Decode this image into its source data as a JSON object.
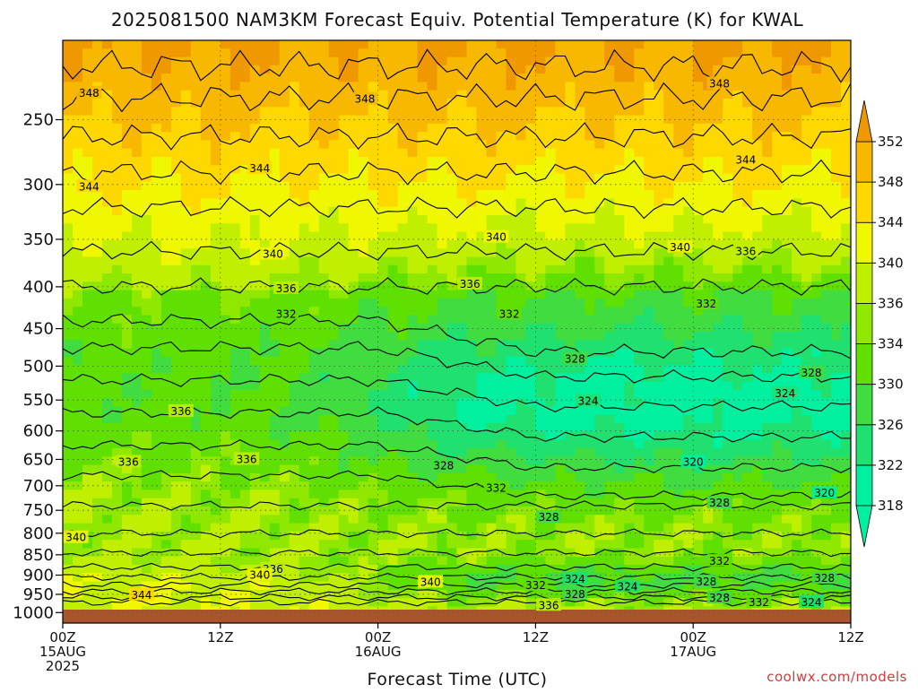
{
  "chart_data": {
    "type": "heatmap",
    "title": "2025081500 NAM3KM Forecast Equiv. Potential Temperature (K) for KWAL",
    "xlabel": "Forecast Time (UTC)",
    "ylabel": "",
    "x_ticks": [
      {
        "hour": 0,
        "lines": [
          "00Z",
          "15AUG",
          "2025"
        ]
      },
      {
        "hour": 12,
        "lines": [
          "12Z"
        ]
      },
      {
        "hour": 24,
        "lines": [
          "00Z",
          "16AUG"
        ]
      },
      {
        "hour": 36,
        "lines": [
          "12Z"
        ]
      },
      {
        "hour": 48,
        "lines": [
          "00Z",
          "17AUG"
        ]
      },
      {
        "hour": 60,
        "lines": [
          "12Z"
        ]
      }
    ],
    "xlim": [
      0,
      60
    ],
    "y_scale": "log-pressure",
    "ylim": [
      1030,
      200
    ],
    "y_ticks": [
      250,
      300,
      350,
      400,
      450,
      500,
      550,
      600,
      650,
      700,
      750,
      800,
      850,
      900,
      950,
      1000
    ],
    "colorbar": {
      "levels": [
        318,
        322,
        326,
        330,
        334,
        336,
        340,
        344,
        348,
        352
      ],
      "colors": [
        "#00f0a0",
        "#20e070",
        "#40dc40",
        "#60e000",
        "#90e800",
        "#c0f000",
        "#f0f800",
        "#ffd800",
        "#f8b800",
        "#f09800"
      ]
    },
    "contour_labels": [
      {
        "hour": 2,
        "p": 232,
        "text": "348"
      },
      {
        "hour": 23,
        "p": 236,
        "text": "348"
      },
      {
        "hour": 50,
        "p": 226,
        "text": "348"
      },
      {
        "hour": 15,
        "p": 287,
        "text": "344"
      },
      {
        "hour": 2,
        "p": 302,
        "text": "344"
      },
      {
        "hour": 52,
        "p": 280,
        "text": "344"
      },
      {
        "hour": 16,
        "p": 365,
        "text": "340"
      },
      {
        "hour": 33,
        "p": 348,
        "text": "340"
      },
      {
        "hour": 47,
        "p": 358,
        "text": "340"
      },
      {
        "hour": 52,
        "p": 362,
        "text": "336"
      },
      {
        "hour": 17,
        "p": 402,
        "text": "336"
      },
      {
        "hour": 31,
        "p": 397,
        "text": "336"
      },
      {
        "hour": 17,
        "p": 432,
        "text": "332"
      },
      {
        "hour": 34,
        "p": 432,
        "text": "332"
      },
      {
        "hour": 49,
        "p": 420,
        "text": "332"
      },
      {
        "hour": 39,
        "p": 490,
        "text": "328"
      },
      {
        "hour": 57,
        "p": 510,
        "text": "328"
      },
      {
        "hour": 40,
        "p": 552,
        "text": "324"
      },
      {
        "hour": 55,
        "p": 540,
        "text": "324"
      },
      {
        "hour": 9,
        "p": 568,
        "text": "336"
      },
      {
        "hour": 5,
        "p": 655,
        "text": "336"
      },
      {
        "hour": 14,
        "p": 650,
        "text": "336"
      },
      {
        "hour": 29,
        "p": 662,
        "text": "328"
      },
      {
        "hour": 33,
        "p": 705,
        "text": "332"
      },
      {
        "hour": 48,
        "p": 655,
        "text": "320"
      },
      {
        "hour": 58,
        "p": 715,
        "text": "320"
      },
      {
        "hour": 50,
        "p": 735,
        "text": "328"
      },
      {
        "hour": 37,
        "p": 765,
        "text": "328"
      },
      {
        "hour": 1,
        "p": 810,
        "text": "340"
      },
      {
        "hour": 50,
        "p": 865,
        "text": "332"
      },
      {
        "hour": 16,
        "p": 885,
        "text": "336"
      },
      {
        "hour": 15,
        "p": 900,
        "text": "340"
      },
      {
        "hour": 28,
        "p": 918,
        "text": "340"
      },
      {
        "hour": 36,
        "p": 927,
        "text": "332"
      },
      {
        "hour": 39,
        "p": 910,
        "text": "324"
      },
      {
        "hour": 43,
        "p": 930,
        "text": "324"
      },
      {
        "hour": 49,
        "p": 917,
        "text": "328"
      },
      {
        "hour": 58,
        "p": 908,
        "text": "328"
      },
      {
        "hour": 39,
        "p": 950,
        "text": "328"
      },
      {
        "hour": 6,
        "p": 952,
        "text": "344"
      },
      {
        "hour": 37,
        "p": 980,
        "text": "336"
      },
      {
        "hour": 50,
        "p": 960,
        "text": "328"
      },
      {
        "hour": 53,
        "p": 972,
        "text": "332"
      },
      {
        "hour": 57,
        "p": 972,
        "text": "324"
      }
    ]
  },
  "credit": "coolwx.com/models"
}
